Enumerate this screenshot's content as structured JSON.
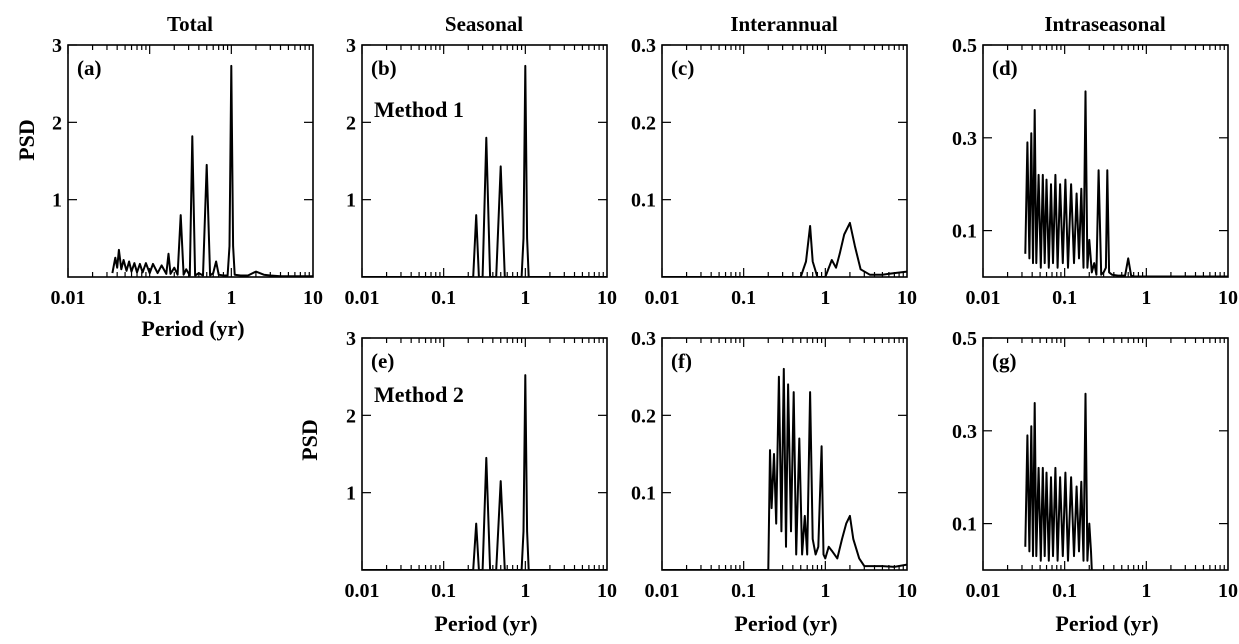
{
  "column_titles": [
    "Total",
    "Seasonal",
    "Interannual",
    "Intraseasonal"
  ],
  "method_labels": [
    "Method 1",
    "Method 2"
  ],
  "ylabel": "PSD",
  "xlabel": "Period (yr)",
  "x_tick_labels": [
    "0.01",
    "0.1",
    "1",
    "10"
  ],
  "chart_data": [
    {
      "panel": "(a)",
      "column": "Total",
      "type": "line",
      "xscale": "log",
      "xlim": [
        0.01,
        10
      ],
      "ylim": [
        0,
        3
      ],
      "ytick_values": [
        1,
        2,
        3
      ],
      "ytick_labels": [
        "1",
        "2",
        "3"
      ],
      "xlabel": "Period (yr)",
      "ylabel": "PSD",
      "x": [
        0.035,
        0.038,
        0.04,
        0.042,
        0.045,
        0.048,
        0.052,
        0.056,
        0.06,
        0.065,
        0.07,
        0.076,
        0.082,
        0.09,
        0.1,
        0.11,
        0.125,
        0.14,
        0.16,
        0.17,
        0.18,
        0.2,
        0.22,
        0.24,
        0.26,
        0.28,
        0.31,
        0.333,
        0.36,
        0.4,
        0.45,
        0.5,
        0.55,
        0.6,
        0.65,
        0.7,
        0.8,
        0.9,
        0.95,
        1.0,
        1.05,
        1.1,
        1.3,
        1.6,
        2.0,
        2.5,
        3.0,
        4.0,
        6.0,
        10.0
      ],
      "y": [
        0.05,
        0.25,
        0.12,
        0.35,
        0.1,
        0.22,
        0.08,
        0.2,
        0.07,
        0.18,
        0.06,
        0.17,
        0.06,
        0.18,
        0.05,
        0.17,
        0.05,
        0.15,
        0.04,
        0.3,
        0.04,
        0.12,
        0.03,
        0.8,
        0.03,
        0.1,
        0.02,
        1.82,
        0.02,
        0.05,
        0.02,
        1.45,
        0.02,
        0.05,
        0.2,
        0.03,
        0.02,
        0.02,
        0.4,
        2.73,
        0.4,
        0.03,
        0.02,
        0.02,
        0.07,
        0.03,
        0.02,
        0.01,
        0.01,
        0.01
      ]
    },
    {
      "panel": "(b)",
      "column": "Seasonal",
      "method": "Method 1",
      "type": "line",
      "xscale": "log",
      "xlim": [
        0.01,
        10
      ],
      "ylim": [
        0,
        3
      ],
      "ytick_values": [
        1,
        2,
        3
      ],
      "ytick_labels": [
        "1",
        "2",
        "3"
      ],
      "x": [
        0.01,
        0.2,
        0.23,
        0.25,
        0.27,
        0.3,
        0.333,
        0.37,
        0.44,
        0.5,
        0.56,
        0.9,
        0.95,
        1.0,
        1.05,
        1.1,
        10.0
      ],
      "y": [
        0,
        0,
        0,
        0.8,
        0,
        0,
        1.8,
        0,
        0,
        1.43,
        0,
        0,
        0.5,
        2.73,
        0.5,
        0,
        0
      ]
    },
    {
      "panel": "(c)",
      "column": "Interannual",
      "method": "Method 1",
      "type": "line",
      "xscale": "log",
      "xlim": [
        0.01,
        10
      ],
      "ylim": [
        0,
        0.3
      ],
      "ytick_values": [
        0.1,
        0.2,
        0.3
      ],
      "ytick_labels": [
        "0.1",
        "0.2",
        "0.3"
      ],
      "x": [
        0.01,
        0.4,
        0.5,
        0.58,
        0.65,
        0.7,
        0.8,
        1.0,
        1.2,
        1.35,
        1.5,
        1.7,
        2.0,
        2.3,
        2.7,
        3.5,
        5.0,
        7.0,
        10.0
      ],
      "y": [
        0,
        0,
        0,
        0.02,
        0.066,
        0.02,
        0,
        0,
        0.022,
        0.012,
        0.03,
        0.055,
        0.07,
        0.04,
        0.01,
        0.003,
        0.003,
        0.005,
        0.007
      ]
    },
    {
      "panel": "(d)",
      "column": "Intraseasonal",
      "method": "Method 1",
      "type": "line",
      "xscale": "log",
      "xlim": [
        0.01,
        10
      ],
      "ylim": [
        0,
        0.5
      ],
      "ytick_values": [
        0.1,
        0.3,
        0.5
      ],
      "ytick_labels": [
        "0.1",
        "0.3",
        "0.5"
      ],
      "x": [
        0.033,
        0.035,
        0.037,
        0.039,
        0.041,
        0.043,
        0.045,
        0.048,
        0.051,
        0.054,
        0.057,
        0.06,
        0.064,
        0.068,
        0.072,
        0.077,
        0.082,
        0.088,
        0.095,
        0.102,
        0.11,
        0.12,
        0.13,
        0.14,
        0.15,
        0.16,
        0.17,
        0.18,
        0.19,
        0.2,
        0.215,
        0.23,
        0.245,
        0.26,
        0.28,
        0.3,
        0.32,
        0.333,
        0.35,
        0.38,
        0.45,
        0.55,
        0.6,
        0.65,
        0.7,
        1.0,
        10.0
      ],
      "y": [
        0.05,
        0.29,
        0.04,
        0.31,
        0.03,
        0.36,
        0.03,
        0.22,
        0.02,
        0.22,
        0.03,
        0.21,
        0.02,
        0.2,
        0.03,
        0.22,
        0.02,
        0.2,
        0.03,
        0.21,
        0.02,
        0.2,
        0.03,
        0.18,
        0.04,
        0.19,
        0.02,
        0.4,
        0.02,
        0.08,
        0.01,
        0.03,
        0.005,
        0.23,
        0.005,
        0.01,
        0.02,
        0.23,
        0.01,
        0.005,
        0.003,
        0.003,
        0.04,
        0.003,
        0.001,
        0.001,
        0.001
      ]
    },
    {
      "panel": "(e)",
      "column": "Seasonal",
      "method": "Method 2",
      "type": "line",
      "xscale": "log",
      "xlim": [
        0.01,
        10
      ],
      "ylim": [
        0,
        3
      ],
      "ytick_values": [
        1,
        2,
        3
      ],
      "ytick_labels": [
        "1",
        "2",
        "3"
      ],
      "x": [
        0.01,
        0.2,
        0.23,
        0.25,
        0.27,
        0.3,
        0.333,
        0.37,
        0.44,
        0.5,
        0.56,
        0.9,
        0.95,
        1.0,
        1.05,
        1.1,
        10.0
      ],
      "y": [
        0,
        0,
        0,
        0.6,
        0,
        0,
        1.45,
        0,
        0,
        1.15,
        0,
        0,
        0.5,
        2.52,
        0.5,
        0,
        0
      ]
    },
    {
      "panel": "(f)",
      "column": "Interannual",
      "method": "Method 2",
      "type": "line",
      "xscale": "log",
      "xlim": [
        0.01,
        10
      ],
      "ylim": [
        0,
        0.3
      ],
      "ytick_values": [
        0.1,
        0.2,
        0.3
      ],
      "ytick_labels": [
        "0.1",
        "0.2",
        "0.3"
      ],
      "x": [
        0.01,
        0.2,
        0.21,
        0.22,
        0.235,
        0.25,
        0.27,
        0.29,
        0.31,
        0.33,
        0.35,
        0.38,
        0.41,
        0.44,
        0.48,
        0.52,
        0.56,
        0.6,
        0.65,
        0.7,
        0.76,
        0.82,
        0.9,
        0.95,
        1.0,
        1.1,
        1.2,
        1.4,
        1.6,
        1.8,
        2.0,
        2.2,
        2.6,
        3.0,
        4.0,
        5.0,
        7.0,
        10.0
      ],
      "y": [
        0,
        0,
        0.155,
        0.08,
        0.15,
        0.06,
        0.25,
        0.05,
        0.26,
        0.03,
        0.24,
        0.05,
        0.23,
        0.02,
        0.17,
        0.02,
        0.07,
        0.02,
        0.23,
        0.04,
        0.02,
        0.03,
        0.16,
        0.02,
        0.015,
        0.03,
        0.025,
        0.015,
        0.04,
        0.06,
        0.07,
        0.04,
        0.015,
        0.005,
        0.005,
        0.005,
        0.004,
        0.007
      ]
    },
    {
      "panel": "(g)",
      "column": "Intraseasonal",
      "method": "Method 2",
      "type": "line",
      "xscale": "log",
      "xlim": [
        0.01,
        10
      ],
      "ylim": [
        0,
        0.5
      ],
      "ytick_values": [
        0.1,
        0.3,
        0.5
      ],
      "ytick_labels": [
        "0.1",
        "0.3",
        "0.5"
      ],
      "x": [
        0.033,
        0.035,
        0.037,
        0.039,
        0.041,
        0.043,
        0.045,
        0.048,
        0.051,
        0.054,
        0.057,
        0.06,
        0.064,
        0.068,
        0.072,
        0.077,
        0.082,
        0.088,
        0.095,
        0.102,
        0.11,
        0.12,
        0.13,
        0.14,
        0.15,
        0.16,
        0.17,
        0.18,
        0.19,
        0.2,
        0.21,
        0.215
      ],
      "y": [
        0.05,
        0.29,
        0.04,
        0.31,
        0.03,
        0.36,
        0.03,
        0.22,
        0.02,
        0.22,
        0.03,
        0.21,
        0.02,
        0.2,
        0.03,
        0.22,
        0.02,
        0.2,
        0.03,
        0.21,
        0.02,
        0.2,
        0.03,
        0.18,
        0.04,
        0.19,
        0.02,
        0.38,
        0.02,
        0.1,
        0.04,
        0.0
      ]
    }
  ]
}
